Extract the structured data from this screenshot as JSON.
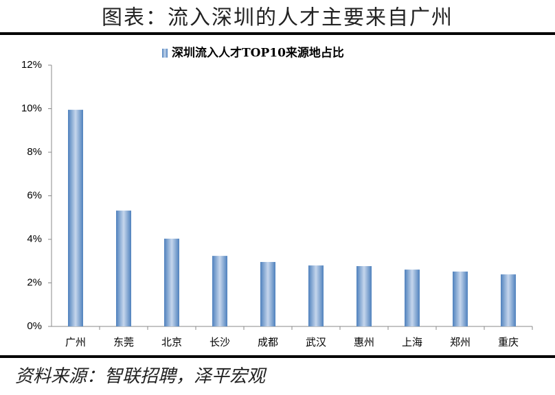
{
  "chart_data": {
    "type": "bar",
    "title": "图表：流入深圳的人才主要来自广州",
    "source": "资料来源：智联招聘，泽平宏观",
    "categories": [
      "广州",
      "东莞",
      "北京",
      "长沙",
      "成都",
      "武汉",
      "惠州",
      "上海",
      "郑州",
      "重庆"
    ],
    "series": [
      {
        "name": "深圳流入人才TOP10来源地占比",
        "color": "#4f81bd",
        "values": [
          9.95,
          5.32,
          4.03,
          3.24,
          2.96,
          2.8,
          2.77,
          2.61,
          2.52,
          2.39
        ]
      }
    ],
    "ylim": [
      0,
      12
    ],
    "yticks": [
      {
        "value": 0,
        "label": "0%"
      },
      {
        "value": 2,
        "label": "2%"
      },
      {
        "value": 4,
        "label": "4%"
      },
      {
        "value": 6,
        "label": "6%"
      },
      {
        "value": 8,
        "label": "8%"
      },
      {
        "value": 10,
        "label": "10%"
      },
      {
        "value": 12,
        "label": "12%"
      }
    ],
    "legend": "top"
  }
}
